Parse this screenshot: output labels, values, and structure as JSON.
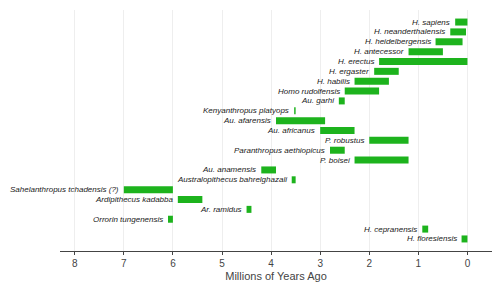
{
  "chart_data": {
    "type": "bar",
    "orientation": "horizontal",
    "xlabel": "Millions of Years Ago",
    "categories": [
      "H. sapiens",
      "H. neanderthalensis",
      "H. heidelbergensis",
      "H. antecessor",
      "H. erectus",
      "H. ergaster",
      "H. habilis",
      "Homo rudolfensis",
      "Au. garhi",
      "Kenyanthropus platyops",
      "Au. afarensis",
      "Au. africanus",
      "P. robustus",
      "Paranthropus aethiopicus",
      "P. boisei",
      "Au. anamensis",
      "Australopithecus bahrelghazali",
      "Sahelanthropus tchadensis (?)",
      "Ardipithecus kadabba",
      "Ar. ramidus",
      "Orrorin tungenensis",
      "H. cepranensis",
      "H. floresiensis"
    ],
    "start": [
      0.0,
      0.03,
      0.1,
      0.5,
      0.0,
      1.4,
      1.6,
      1.8,
      2.5,
      3.5,
      2.9,
      2.3,
      1.2,
      2.5,
      1.2,
      3.9,
      3.5,
      6.0,
      5.4,
      4.4,
      6.0,
      0.8,
      0.0
    ],
    "end": [
      0.25,
      0.35,
      0.65,
      1.2,
      1.8,
      1.9,
      2.3,
      2.5,
      2.62,
      3.53,
      3.9,
      3.0,
      2.0,
      2.8,
      2.3,
      4.2,
      3.58,
      7.0,
      5.9,
      4.5,
      6.1,
      0.92,
      0.12
    ],
    "color": "#1db31d",
    "xlim": [
      8.3,
      -0.5
    ],
    "xticks": [
      0,
      1,
      2,
      3,
      4,
      5,
      6,
      7,
      8
    ],
    "grid": true,
    "tick_labels": "x"
  }
}
